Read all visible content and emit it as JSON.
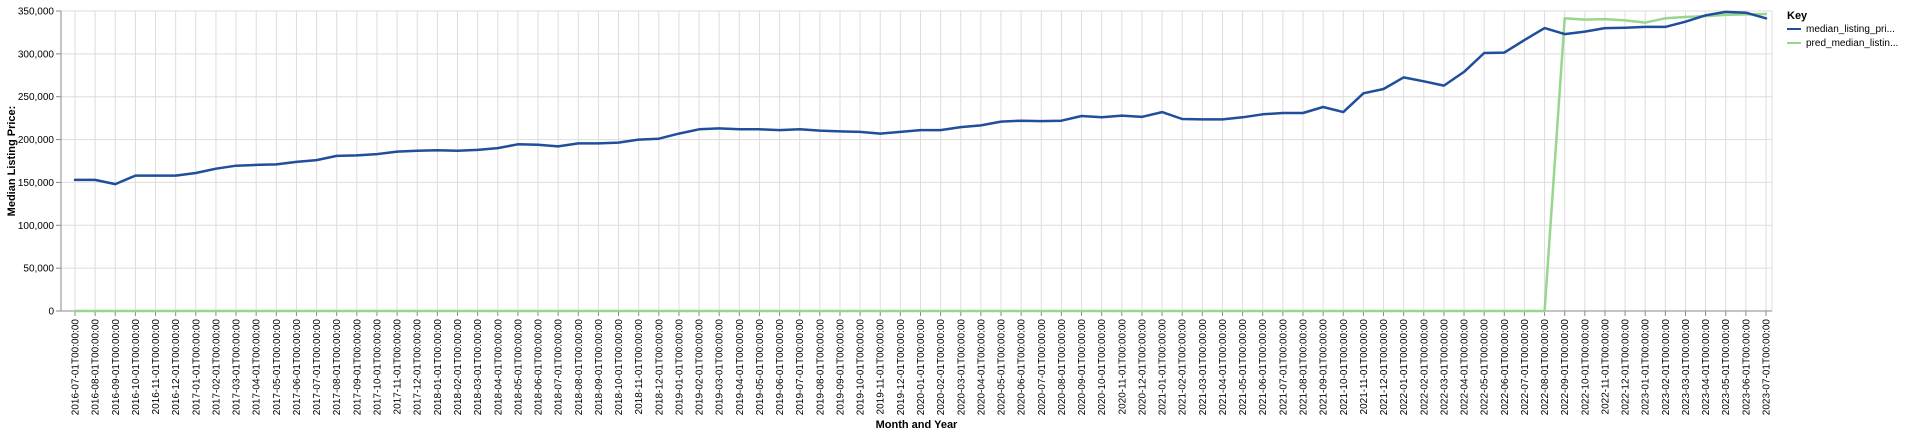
{
  "chart_data": {
    "type": "line",
    "title": "",
    "xlabel": "Month and Year",
    "ylabel": "Median Listing Price:",
    "ylim": [
      0,
      350000
    ],
    "yticks": [
      0,
      50000,
      100000,
      150000,
      200000,
      250000,
      300000,
      350000
    ],
    "ytick_labels": [
      "0",
      "50,000",
      "100,000",
      "150,000",
      "200,000",
      "250,000",
      "300,000",
      "350,000"
    ],
    "grid": true,
    "legend": {
      "title": "Key",
      "placement": "right"
    },
    "categories": [
      "2016-07-01T00:00:00",
      "2016-08-01T00:00:00",
      "2016-09-01T00:00:00",
      "2016-10-01T00:00:00",
      "2016-11-01T00:00:00",
      "2016-12-01T00:00:00",
      "2017-01-01T00:00:00",
      "2017-02-01T00:00:00",
      "2017-03-01T00:00:00",
      "2017-04-01T00:00:00",
      "2017-05-01T00:00:00",
      "2017-06-01T00:00:00",
      "2017-07-01T00:00:00",
      "2017-08-01T00:00:00",
      "2017-09-01T00:00:00",
      "2017-10-01T00:00:00",
      "2017-11-01T00:00:00",
      "2017-12-01T00:00:00",
      "2018-01-01T00:00:00",
      "2018-02-01T00:00:00",
      "2018-03-01T00:00:00",
      "2018-04-01T00:00:00",
      "2018-05-01T00:00:00",
      "2018-06-01T00:00:00",
      "2018-07-01T00:00:00",
      "2018-08-01T00:00:00",
      "2018-09-01T00:00:00",
      "2018-10-01T00:00:00",
      "2018-11-01T00:00:00",
      "2018-12-01T00:00:00",
      "2019-01-01T00:00:00",
      "2019-02-01T00:00:00",
      "2019-03-01T00:00:00",
      "2019-04-01T00:00:00",
      "2019-05-01T00:00:00",
      "2019-06-01T00:00:00",
      "2019-07-01T00:00:00",
      "2019-08-01T00:00:00",
      "2019-09-01T00:00:00",
      "2019-10-01T00:00:00",
      "2019-11-01T00:00:00",
      "2019-12-01T00:00:00",
      "2020-01-01T00:00:00",
      "2020-02-01T00:00:00",
      "2020-03-01T00:00:00",
      "2020-04-01T00:00:00",
      "2020-05-01T00:00:00",
      "2020-06-01T00:00:00",
      "2020-07-01T00:00:00",
      "2020-08-01T00:00:00",
      "2020-09-01T00:00:00",
      "2020-10-01T00:00:00",
      "2020-11-01T00:00:00",
      "2020-12-01T00:00:00",
      "2021-01-01T00:00:00",
      "2021-02-01T00:00:00",
      "2021-03-01T00:00:00",
      "2021-04-01T00:00:00",
      "2021-05-01T00:00:00",
      "2021-06-01T00:00:00",
      "2021-07-01T00:00:00",
      "2021-08-01T00:00:00",
      "2021-09-01T00:00:00",
      "2021-10-01T00:00:00",
      "2021-11-01T00:00:00",
      "2021-12-01T00:00:00",
      "2022-01-01T00:00:00",
      "2022-02-01T00:00:00",
      "2022-03-01T00:00:00",
      "2022-04-01T00:00:00",
      "2022-05-01T00:00:00",
      "2022-06-01T00:00:00",
      "2022-07-01T00:00:00",
      "2022-08-01T00:00:00",
      "2022-09-01T00:00:00",
      "2022-10-01T00:00:00",
      "2022-11-01T00:00:00",
      "2022-12-01T00:00:00",
      "2023-01-01T00:00:00",
      "2023-02-01T00:00:00",
      "2023-03-01T00:00:00",
      "2023-04-01T00:00:00",
      "2023-05-01T00:00:00",
      "2023-06-01T00:00:00",
      "2023-07-01T00:00:00"
    ],
    "series": [
      {
        "name": "median_listing_pri...",
        "color": "#1f4e9c",
        "values": [
          153000,
          153000,
          148000,
          158000,
          158000,
          158000,
          161000,
          166000,
          169500,
          170500,
          171000,
          174000,
          176000,
          181000,
          181500,
          183000,
          186000,
          187000,
          187500,
          187000,
          188000,
          190000,
          194500,
          194000,
          192000,
          195500,
          195500,
          196500,
          200000,
          201000,
          207000,
          212000,
          213000,
          212000,
          212000,
          211000,
          212000,
          210500,
          209500,
          209000,
          207000,
          209000,
          211000,
          211000,
          214500,
          216500,
          221000,
          222000,
          221500,
          222000,
          227500,
          226000,
          228000,
          226500,
          232000,
          224000,
          223500,
          223500,
          226000,
          229500,
          231000,
          231000,
          238000,
          232000,
          254000,
          259000,
          272500,
          268000,
          263000,
          279000,
          301000,
          301500,
          316000,
          330000,
          323000,
          326000,
          330000,
          330500,
          331500,
          331500,
          337500,
          345000,
          349000,
          348000,
          341500
        ]
      },
      {
        "name": "pred_median_listin...",
        "color": "#98d68f",
        "values": [
          0,
          0,
          0,
          0,
          0,
          0,
          0,
          0,
          0,
          0,
          0,
          0,
          0,
          0,
          0,
          0,
          0,
          0,
          0,
          0,
          0,
          0,
          0,
          0,
          0,
          0,
          0,
          0,
          0,
          0,
          0,
          0,
          0,
          0,
          0,
          0,
          0,
          0,
          0,
          0,
          0,
          0,
          0,
          0,
          0,
          0,
          0,
          0,
          0,
          0,
          0,
          0,
          0,
          0,
          0,
          0,
          0,
          0,
          0,
          0,
          0,
          0,
          0,
          0,
          0,
          0,
          0,
          0,
          0,
          0,
          0,
          0,
          0,
          0,
          341500,
          340000,
          340500,
          339000,
          336500,
          341500,
          343000,
          344000,
          345500,
          346000,
          346500
        ]
      }
    ]
  }
}
